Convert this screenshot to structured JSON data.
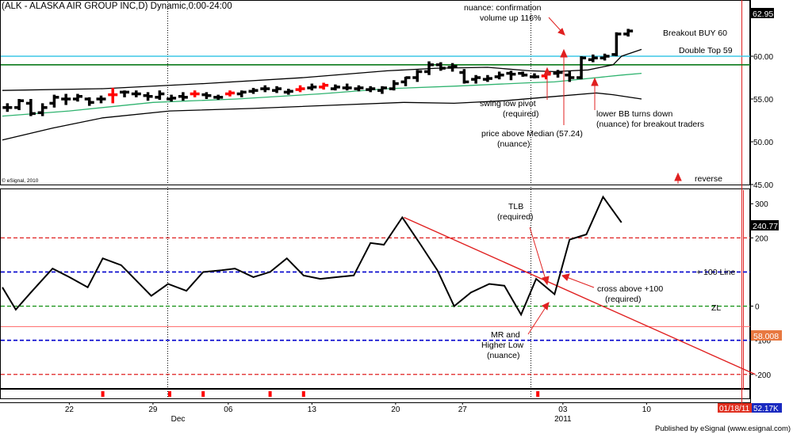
{
  "chart_data": {
    "title": "(ALK - ALASKA AIR GROUP INC,D) Dynamic,0:00-24:00",
    "copyright": "© eSignal, 2010",
    "published": "Published by eSignal (www.esignal.com)",
    "colors": {
      "bar": "#000000",
      "bar_red": "#ff0000",
      "middle_band": "#2fb36f",
      "bbands": "#000000",
      "breakout_line": "#3fc7e6",
      "double_top_line": "#0a7a1a",
      "cci": "#000000",
      "trend_line": "#e02020",
      "level_red": "#e02020",
      "level_blue": "#0000cc",
      "level_green": "#008800",
      "level_pink": "#ff6666",
      "tag_red": "#e03020",
      "tag_blue": "#1a2ac0"
    },
    "x_axis": {
      "ticks": [
        {
          "i": 4,
          "label": "22"
        },
        {
          "i": 9,
          "label": "29"
        },
        {
          "i": 13.5,
          "label": "06"
        },
        {
          "i": 18.5,
          "label": "13"
        },
        {
          "i": 23.5,
          "label": "20"
        },
        {
          "i": 27.5,
          "label": "27"
        },
        {
          "i": 33.5,
          "label": "03"
        },
        {
          "i": 38.5,
          "label": "10"
        }
      ],
      "months": [
        {
          "i": 10.5,
          "label": "Dec"
        },
        {
          "i": 33.5,
          "label": "2011"
        }
      ],
      "date_tag": "01/18/11",
      "volume_tag": "52.17K"
    },
    "price_panel": {
      "type": "bar",
      "ylim": [
        45,
        65
      ],
      "ticks": [
        "62.95",
        "60.00",
        "55.00",
        "50.00",
        "45.00"
      ],
      "last_tag": "62.95",
      "bars": [
        {
          "o": 54.0,
          "h": 54.5,
          "l": 53.5,
          "c": 54.0,
          "red": false
        },
        {
          "o": 54.0,
          "h": 55.0,
          "l": 53.7,
          "c": 54.8,
          "red": false
        },
        {
          "o": 54.5,
          "h": 55.0,
          "l": 53.0,
          "c": 53.3,
          "red": false
        },
        {
          "o": 53.4,
          "h": 54.5,
          "l": 53.0,
          "c": 54.0,
          "red": false
        },
        {
          "o": 54.5,
          "h": 55.5,
          "l": 54.0,
          "c": 55.2,
          "red": false
        },
        {
          "o": 55.0,
          "h": 55.6,
          "l": 54.3,
          "c": 55.0,
          "red": false
        },
        {
          "o": 55.0,
          "h": 55.6,
          "l": 54.7,
          "c": 55.3,
          "red": false
        },
        {
          "o": 55.0,
          "h": 55.2,
          "l": 54.2,
          "c": 54.6,
          "red": false
        },
        {
          "o": 55.0,
          "h": 55.4,
          "l": 54.5,
          "c": 55.0,
          "red": false
        },
        {
          "o": 55.5,
          "h": 56.3,
          "l": 54.5,
          "c": 55.5,
          "red": true
        },
        {
          "o": 55.8,
          "h": 56.0,
          "l": 55.2,
          "c": 55.8,
          "red": false
        },
        {
          "o": 55.6,
          "h": 56.0,
          "l": 55.2,
          "c": 55.6,
          "red": false
        },
        {
          "o": 55.4,
          "h": 55.8,
          "l": 54.8,
          "c": 55.3,
          "red": false
        },
        {
          "o": 55.2,
          "h": 56.0,
          "l": 54.9,
          "c": 55.6,
          "red": false
        },
        {
          "o": 55.0,
          "h": 55.5,
          "l": 54.7,
          "c": 55.1,
          "red": false
        },
        {
          "o": 55.3,
          "h": 55.8,
          "l": 54.8,
          "c": 55.2,
          "red": false
        },
        {
          "o": 55.6,
          "h": 56.0,
          "l": 55.2,
          "c": 55.6,
          "red": true
        },
        {
          "o": 55.5,
          "h": 55.8,
          "l": 55.0,
          "c": 55.4,
          "red": false
        },
        {
          "o": 55.2,
          "h": 55.5,
          "l": 54.9,
          "c": 55.2,
          "red": false
        },
        {
          "o": 55.6,
          "h": 56.0,
          "l": 55.3,
          "c": 55.7,
          "red": true
        },
        {
          "o": 55.6,
          "h": 56.0,
          "l": 55.2,
          "c": 55.8,
          "red": false
        },
        {
          "o": 55.9,
          "h": 56.3,
          "l": 55.6,
          "c": 56.0,
          "red": false
        },
        {
          "o": 56.2,
          "h": 56.6,
          "l": 55.8,
          "c": 56.2,
          "red": false
        },
        {
          "o": 56.0,
          "h": 56.5,
          "l": 55.7,
          "c": 56.2,
          "red": false
        },
        {
          "o": 55.8,
          "h": 56.2,
          "l": 55.5,
          "c": 55.9,
          "red": false
        },
        {
          "o": 56.1,
          "h": 56.6,
          "l": 55.8,
          "c": 56.2,
          "red": true
        },
        {
          "o": 56.3,
          "h": 56.8,
          "l": 56.0,
          "c": 56.4,
          "red": false
        },
        {
          "o": 56.4,
          "h": 56.9,
          "l": 56.1,
          "c": 56.6,
          "red": true
        },
        {
          "o": 56.2,
          "h": 56.7,
          "l": 56.0,
          "c": 56.4,
          "red": false
        },
        {
          "o": 56.3,
          "h": 56.8,
          "l": 56.0,
          "c": 56.3,
          "red": false
        },
        {
          "o": 56.2,
          "h": 56.6,
          "l": 55.9,
          "c": 56.3,
          "red": false
        },
        {
          "o": 56.1,
          "h": 56.5,
          "l": 55.8,
          "c": 56.2,
          "red": false
        },
        {
          "o": 56.0,
          "h": 56.5,
          "l": 55.6,
          "c": 56.3,
          "red": false
        },
        {
          "o": 56.2,
          "h": 57.2,
          "l": 56.0,
          "c": 56.8,
          "red": false
        },
        {
          "o": 57.0,
          "h": 57.6,
          "l": 56.5,
          "c": 57.5,
          "red": false
        },
        {
          "o": 57.5,
          "h": 58.4,
          "l": 57.0,
          "c": 58.2,
          "red": false
        },
        {
          "o": 58.2,
          "h": 59.4,
          "l": 57.8,
          "c": 59.0,
          "red": false
        },
        {
          "o": 59.0,
          "h": 59.3,
          "l": 58.3,
          "c": 58.6,
          "red": false
        },
        {
          "o": 58.7,
          "h": 59.2,
          "l": 58.2,
          "c": 58.8,
          "red": false
        },
        {
          "o": 58.1,
          "h": 58.5,
          "l": 56.8,
          "c": 57.0,
          "red": false
        },
        {
          "o": 57.3,
          "h": 57.8,
          "l": 56.8,
          "c": 57.5,
          "red": false
        },
        {
          "o": 57.3,
          "h": 57.8,
          "l": 57.0,
          "c": 57.4,
          "red": false
        },
        {
          "o": 57.6,
          "h": 58.2,
          "l": 57.3,
          "c": 57.8,
          "red": false
        },
        {
          "o": 58.0,
          "h": 58.3,
          "l": 57.2,
          "c": 57.9,
          "red": false
        },
        {
          "o": 58.0,
          "h": 58.2,
          "l": 57.6,
          "c": 57.8,
          "red": false
        },
        {
          "o": 57.6,
          "h": 58.0,
          "l": 57.4,
          "c": 57.6,
          "red": false
        },
        {
          "o": 57.7,
          "h": 58.3,
          "l": 57.3,
          "c": 58.0,
          "red": true
        },
        {
          "o": 58.0,
          "h": 58.4,
          "l": 57.5,
          "c": 58.1,
          "red": false
        },
        {
          "o": 57.8,
          "h": 58.3,
          "l": 57.0,
          "c": 57.5,
          "red": false
        },
        {
          "o": 57.5,
          "h": 60.0,
          "l": 57.3,
          "c": 59.8,
          "red": false
        },
        {
          "o": 59.6,
          "h": 60.2,
          "l": 59.3,
          "c": 59.8,
          "red": false
        },
        {
          "o": 59.8,
          "h": 60.3,
          "l": 59.5,
          "c": 60.0,
          "red": false
        },
        {
          "o": 60.2,
          "h": 62.8,
          "l": 60.0,
          "c": 62.6,
          "red": false
        },
        {
          "o": 62.6,
          "h": 63.2,
          "l": 62.3,
          "c": 62.95,
          "red": false
        }
      ],
      "bar_x_start": 0.3,
      "bar_x_step": 0.7,
      "lines": {
        "upper_bb": [
          [
            0,
            56.0
          ],
          [
            6,
            56.2
          ],
          [
            12,
            56.8
          ],
          [
            18,
            57.5
          ],
          [
            23,
            58.3
          ],
          [
            26,
            58.6
          ],
          [
            29,
            58.7
          ],
          [
            31.5,
            58.3
          ],
          [
            33,
            58.2
          ],
          [
            35,
            58.4
          ],
          [
            36.5,
            59.0
          ],
          [
            37,
            60.0
          ],
          [
            38.2,
            60.8
          ]
        ],
        "middle": [
          [
            0,
            53.0
          ],
          [
            4,
            53.6
          ],
          [
            9,
            54.6
          ],
          [
            14,
            55.0
          ],
          [
            19,
            55.6
          ],
          [
            23,
            56.2
          ],
          [
            27,
            56.5
          ],
          [
            31.5,
            56.9
          ],
          [
            33,
            57.0
          ],
          [
            35,
            57.4
          ],
          [
            37,
            57.8
          ],
          [
            38.2,
            58.0
          ]
        ],
        "lower_bb": [
          [
            0,
            50.2
          ],
          [
            3,
            51.6
          ],
          [
            6,
            52.8
          ],
          [
            10,
            53.6
          ],
          [
            15,
            53.9
          ],
          [
            20,
            54.3
          ],
          [
            24,
            54.6
          ],
          [
            27,
            54.5
          ],
          [
            30,
            54.8
          ],
          [
            33,
            55.3
          ],
          [
            35.5,
            55.7
          ],
          [
            36.5,
            55.5
          ],
          [
            38.2,
            55.0
          ]
        ]
      },
      "breakout_level": 60.0,
      "double_top_level": 59.0,
      "line_labels": {
        "breakout": "Breakout BUY 60",
        "double_top": "Double Top 59"
      }
    },
    "cci_panel": {
      "ylim": [
        -240,
        340
      ],
      "ticks": [
        "300",
        "200",
        "0",
        "-100",
        "-200"
      ],
      "last_tag": "240.77",
      "level_tag": "58.008",
      "values": [
        [
          0,
          55
        ],
        [
          0.8,
          -10
        ],
        [
          1.7,
          40
        ],
        [
          3.0,
          110
        ],
        [
          4.0,
          85
        ],
        [
          5.1,
          55
        ],
        [
          6.0,
          140
        ],
        [
          7.1,
          120
        ],
        [
          8.9,
          30
        ],
        [
          9.9,
          65
        ],
        [
          11.0,
          45
        ],
        [
          12.0,
          100
        ],
        [
          13.1,
          105
        ],
        [
          13.9,
          110
        ],
        [
          15.0,
          85
        ],
        [
          16.0,
          100
        ],
        [
          17.0,
          140
        ],
        [
          18.0,
          90
        ],
        [
          19.0,
          80
        ],
        [
          20.0,
          85
        ],
        [
          21.0,
          90
        ],
        [
          22.0,
          185
        ],
        [
          22.8,
          180
        ],
        [
          23.9,
          260
        ],
        [
          25.0,
          180
        ],
        [
          26.0,
          105
        ],
        [
          27.0,
          0
        ],
        [
          28.0,
          40
        ],
        [
          29.1,
          65
        ],
        [
          30.0,
          60
        ],
        [
          31.0,
          -25
        ],
        [
          31.9,
          80
        ],
        [
          33.0,
          35
        ],
        [
          33.9,
          195
        ],
        [
          34.9,
          210
        ],
        [
          35.9,
          320
        ],
        [
          37.0,
          245
        ]
      ],
      "levels": {
        "red_top": 200,
        "blue_top": 100,
        "green": 0,
        "blue_bottom": -100,
        "red_bottom": -200,
        "pink": -60
      },
      "trend_line": [
        [
          24.0,
          260
        ],
        [
          45.0,
          -200
        ]
      ],
      "line_labels": {
        "plus100": "+ 100 Line",
        "zl": "ZL"
      },
      "signal_marks": [
        6.0,
        10.0,
        12.0,
        16.0,
        18.0,
        32.0
      ]
    },
    "annotations": {
      "confirmation": [
        "nuance: confirmation",
        "volume up 116%"
      ],
      "swing_low": [
        "swing low pivot",
        "(required)"
      ],
      "median": [
        "price above Median (57.24)",
        "(nuance)"
      ],
      "lower_bb": [
        "lower BB turns down",
        "(nuance) for breakout traders"
      ],
      "reverse": "reverse",
      "tlb": [
        "TLB",
        "(required)"
      ],
      "cross": [
        "cross above +100",
        "(required)"
      ],
      "mr": [
        "MR and",
        "Higher Low",
        "(nuance)"
      ]
    }
  }
}
